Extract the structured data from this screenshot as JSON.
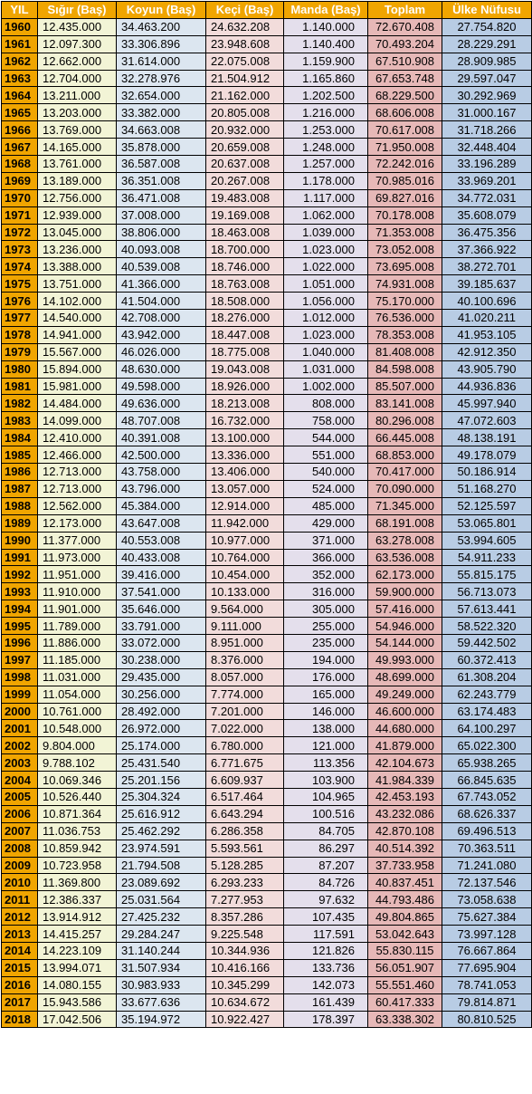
{
  "headers": [
    "YIL",
    "Sığır (Baş)",
    "Koyun (Baş)",
    "Keçi (Baş)",
    "Manda (Baş)",
    "Toplam",
    "Ülke Nüfusu"
  ],
  "rows": [
    [
      "1960",
      "12.435.000",
      "34.463.200",
      "24.632.208",
      "1.140.000",
      "72.670.408",
      "27.754.820"
    ],
    [
      "1961",
      "12.097.300",
      "33.306.896",
      "23.948.608",
      "1.140.400",
      "70.493.204",
      "28.229.291"
    ],
    [
      "1962",
      "12.662.000",
      "31.614.000",
      "22.075.008",
      "1.159.900",
      "67.510.908",
      "28.909.985"
    ],
    [
      "1963",
      "12.704.000",
      "32.278.976",
      "21.504.912",
      "1.165.860",
      "67.653.748",
      "29.597.047"
    ],
    [
      "1964",
      "13.211.000",
      "32.654.000",
      "21.162.000",
      "1.202.500",
      "68.229.500",
      "30.292.969"
    ],
    [
      "1965",
      "13.203.000",
      "33.382.000",
      "20.805.008",
      "1.216.000",
      "68.606.008",
      "31.000.167"
    ],
    [
      "1966",
      "13.769.000",
      "34.663.008",
      "20.932.000",
      "1.253.000",
      "70.617.008",
      "31.718.266"
    ],
    [
      "1967",
      "14.165.000",
      "35.878.000",
      "20.659.008",
      "1.248.000",
      "71.950.008",
      "32.448.404"
    ],
    [
      "1968",
      "13.761.000",
      "36.587.008",
      "20.637.008",
      "1.257.000",
      "72.242.016",
      "33.196.289"
    ],
    [
      "1969",
      "13.189.000",
      "36.351.008",
      "20.267.008",
      "1.178.000",
      "70.985.016",
      "33.969.201"
    ],
    [
      "1970",
      "12.756.000",
      "36.471.008",
      "19.483.008",
      "1.117.000",
      "69.827.016",
      "34.772.031"
    ],
    [
      "1971",
      "12.939.000",
      "37.008.000",
      "19.169.008",
      "1.062.000",
      "70.178.008",
      "35.608.079"
    ],
    [
      "1972",
      "13.045.000",
      "38.806.000",
      "18.463.008",
      "1.039.000",
      "71.353.008",
      "36.475.356"
    ],
    [
      "1973",
      "13.236.000",
      "40.093.008",
      "18.700.000",
      "1.023.000",
      "73.052.008",
      "37.366.922"
    ],
    [
      "1974",
      "13.388.000",
      "40.539.008",
      "18.746.000",
      "1.022.000",
      "73.695.008",
      "38.272.701"
    ],
    [
      "1975",
      "13.751.000",
      "41.366.000",
      "18.763.008",
      "1.051.000",
      "74.931.008",
      "39.185.637"
    ],
    [
      "1976",
      "14.102.000",
      "41.504.000",
      "18.508.000",
      "1.056.000",
      "75.170.000",
      "40.100.696"
    ],
    [
      "1977",
      "14.540.000",
      "42.708.000",
      "18.276.000",
      "1.012.000",
      "76.536.000",
      "41.020.211"
    ],
    [
      "1978",
      "14.941.000",
      "43.942.000",
      "18.447.008",
      "1.023.000",
      "78.353.008",
      "41.953.105"
    ],
    [
      "1979",
      "15.567.000",
      "46.026.000",
      "18.775.008",
      "1.040.000",
      "81.408.008",
      "42.912.350"
    ],
    [
      "1980",
      "15.894.000",
      "48.630.000",
      "19.043.008",
      "1.031.000",
      "84.598.008",
      "43.905.790"
    ],
    [
      "1981",
      "15.981.000",
      "49.598.000",
      "18.926.000",
      "1.002.000",
      "85.507.000",
      "44.936.836"
    ],
    [
      "1982",
      "14.484.000",
      "49.636.000",
      "18.213.008",
      "808.000",
      "83.141.008",
      "45.997.940"
    ],
    [
      "1983",
      "14.099.000",
      "48.707.008",
      "16.732.000",
      "758.000",
      "80.296.008",
      "47.072.603"
    ],
    [
      "1984",
      "12.410.000",
      "40.391.008",
      "13.100.000",
      "544.000",
      "66.445.008",
      "48.138.191"
    ],
    [
      "1985",
      "12.466.000",
      "42.500.000",
      "13.336.000",
      "551.000",
      "68.853.000",
      "49.178.079"
    ],
    [
      "1986",
      "12.713.000",
      "43.758.000",
      "13.406.000",
      "540.000",
      "70.417.000",
      "50.186.914"
    ],
    [
      "1987",
      "12.713.000",
      "43.796.000",
      "13.057.000",
      "524.000",
      "70.090.000",
      "51.168.270"
    ],
    [
      "1988",
      "12.562.000",
      "45.384.000",
      "12.914.000",
      "485.000",
      "71.345.000",
      "52.125.597"
    ],
    [
      "1989",
      "12.173.000",
      "43.647.008",
      "11.942.000",
      "429.000",
      "68.191.008",
      "53.065.801"
    ],
    [
      "1990",
      "11.377.000",
      "40.553.008",
      "10.977.000",
      "371.000",
      "63.278.008",
      "53.994.605"
    ],
    [
      "1991",
      "11.973.000",
      "40.433.008",
      "10.764.000",
      "366.000",
      "63.536.008",
      "54.911.233"
    ],
    [
      "1992",
      "11.951.000",
      "39.416.000",
      "10.454.000",
      "352.000",
      "62.173.000",
      "55.815.175"
    ],
    [
      "1993",
      "11.910.000",
      "37.541.000",
      "10.133.000",
      "316.000",
      "59.900.000",
      "56.713.073"
    ],
    [
      "1994",
      "11.901.000",
      "35.646.000",
      "9.564.000",
      "305.000",
      "57.416.000",
      "57.613.441"
    ],
    [
      "1995",
      "11.789.000",
      "33.791.000",
      "9.111.000",
      "255.000",
      "54.946.000",
      "58.522.320"
    ],
    [
      "1996",
      "11.886.000",
      "33.072.000",
      "8.951.000",
      "235.000",
      "54.144.000",
      "59.442.502"
    ],
    [
      "1997",
      "11.185.000",
      "30.238.000",
      "8.376.000",
      "194.000",
      "49.993.000",
      "60.372.413"
    ],
    [
      "1998",
      "11.031.000",
      "29.435.000",
      "8.057.000",
      "176.000",
      "48.699.000",
      "61.308.204"
    ],
    [
      "1999",
      "11.054.000",
      "30.256.000",
      "7.774.000",
      "165.000",
      "49.249.000",
      "62.243.779"
    ],
    [
      "2000",
      "10.761.000",
      "28.492.000",
      "7.201.000",
      "146.000",
      "46.600.000",
      "63.174.483"
    ],
    [
      "2001",
      "10.548.000",
      "26.972.000",
      "7.022.000",
      "138.000",
      "44.680.000",
      "64.100.297"
    ],
    [
      "2002",
      "9.804.000",
      "25.174.000",
      "6.780.000",
      "121.000",
      "41.879.000",
      "65.022.300"
    ],
    [
      "2003",
      "9.788.102",
      "25.431.540",
      "6.771.675",
      "113.356",
      "42.104.673",
      "65.938.265"
    ],
    [
      "2004",
      "10.069.346",
      "25.201.156",
      "6.609.937",
      "103.900",
      "41.984.339",
      "66.845.635"
    ],
    [
      "2005",
      "10.526.440",
      "25.304.324",
      "6.517.464",
      "104.965",
      "42.453.193",
      "67.743.052"
    ],
    [
      "2006",
      "10.871.364",
      "25.616.912",
      "6.643.294",
      "100.516",
      "43.232.086",
      "68.626.337"
    ],
    [
      "2007",
      "11.036.753",
      "25.462.292",
      "6.286.358",
      "84.705",
      "42.870.108",
      "69.496.513"
    ],
    [
      "2008",
      "10.859.942",
      "23.974.591",
      "5.593.561",
      "86.297",
      "40.514.392",
      "70.363.511"
    ],
    [
      "2009",
      "10.723.958",
      "21.794.508",
      "5.128.285",
      "87.207",
      "37.733.958",
      "71.241.080"
    ],
    [
      "2010",
      "11.369.800",
      "23.089.692",
      "6.293.233",
      "84.726",
      "40.837.451",
      "72.137.546"
    ],
    [
      "2011",
      "12.386.337",
      "25.031.564",
      "7.277.953",
      "97.632",
      "44.793.486",
      "73.058.638"
    ],
    [
      "2012",
      "13.914.912",
      "27.425.232",
      "8.357.286",
      "107.435",
      "49.804.865",
      "75.627.384"
    ],
    [
      "2013",
      "14.415.257",
      "29.284.247",
      "9.225.548",
      "117.591",
      "53.042.643",
      "73.997.128"
    ],
    [
      "2014",
      "14.223.109",
      "31.140.244",
      "10.344.936",
      "121.826",
      "55.830.115",
      "76.667.864"
    ],
    [
      "2015",
      "13.994.071",
      "31.507.934",
      "10.416.166",
      "133.736",
      "56.051.907",
      "77.695.904"
    ],
    [
      "2016",
      "14.080.155",
      "30.983.933",
      "10.345.299",
      "142.073",
      "55.551.460",
      "78.741.053"
    ],
    [
      "2017",
      "15.943.586",
      "33.677.636",
      "10.634.672",
      "161.439",
      "60.417.333",
      "79.814.871"
    ],
    [
      "2018",
      "17.042.506",
      "35.194.972",
      "10.922.427",
      "178.397",
      "63.338.302",
      "80.810.525"
    ]
  ],
  "colors": {
    "header_bg": "#f0a500",
    "header_text": "#ffffff",
    "year_bg": "#f0a500",
    "col_sigir": "#f2f4d6",
    "col_koyun": "#dce6f0",
    "col_keci": "#f2dcdb",
    "col_manda": "#e4dfec",
    "col_toplam": "#e6b8b7",
    "col_nufus": "#b8cce4"
  }
}
